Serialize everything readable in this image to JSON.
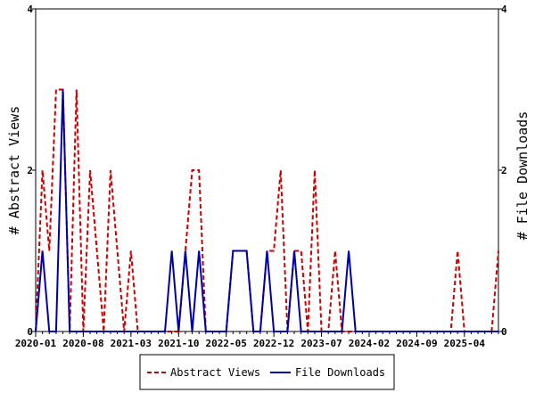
{
  "chart_data": {
    "type": "line",
    "xlabel": "",
    "ylabel_left": "# Abstract Views",
    "ylabel_right": "# File Downloads",
    "ylim": [
      0,
      4
    ],
    "y_ticks": [
      "0",
      "2",
      "4"
    ],
    "x_tick_labels": [
      "2020-01",
      "2020-08",
      "2021-03",
      "2021-10",
      "2022-05",
      "2022-12",
      "2023-07",
      "2024-02",
      "2024-09",
      "2025-04"
    ],
    "x_domain_months": [
      0,
      68
    ],
    "series": [
      {
        "name": "Abstract Views",
        "color": "#cc0000",
        "style": "dashed",
        "axis": "left",
        "points": [
          [
            0,
            0
          ],
          [
            1,
            2
          ],
          [
            2,
            1
          ],
          [
            3,
            3
          ],
          [
            4,
            3
          ],
          [
            5,
            0
          ],
          [
            6,
            3
          ],
          [
            7,
            0
          ],
          [
            8,
            2
          ],
          [
            9,
            1
          ],
          [
            10,
            0
          ],
          [
            11,
            2
          ],
          [
            12,
            1
          ],
          [
            13,
            0
          ],
          [
            14,
            1
          ],
          [
            15,
            0
          ],
          [
            16,
            0
          ],
          [
            17,
            0
          ],
          [
            18,
            0
          ],
          [
            19,
            0
          ],
          [
            20,
            0
          ],
          [
            21,
            0
          ],
          [
            22,
            1
          ],
          [
            23,
            2
          ],
          [
            24,
            2
          ],
          [
            25,
            0
          ],
          [
            26,
            0
          ],
          [
            27,
            0
          ],
          [
            28,
            0
          ],
          [
            29,
            1
          ],
          [
            30,
            1
          ],
          [
            31,
            1
          ],
          [
            32,
            0
          ],
          [
            33,
            0
          ],
          [
            34,
            1
          ],
          [
            35,
            1
          ],
          [
            36,
            2
          ],
          [
            37,
            0
          ],
          [
            38,
            1
          ],
          [
            39,
            1
          ],
          [
            40,
            0
          ],
          [
            41,
            2
          ],
          [
            42,
            0
          ],
          [
            43,
            0
          ],
          [
            44,
            1
          ],
          [
            45,
            0
          ],
          [
            46,
            0
          ],
          [
            47,
            0
          ],
          [
            48,
            0
          ],
          [
            49,
            0
          ],
          [
            50,
            0
          ],
          [
            51,
            0
          ],
          [
            52,
            0
          ],
          [
            53,
            0
          ],
          [
            54,
            0
          ],
          [
            55,
            0
          ],
          [
            56,
            0
          ],
          [
            57,
            0
          ],
          [
            58,
            0
          ],
          [
            59,
            0
          ],
          [
            60,
            0
          ],
          [
            61,
            0
          ],
          [
            62,
            1
          ],
          [
            63,
            0
          ],
          [
            64,
            0
          ],
          [
            65,
            0
          ],
          [
            66,
            0
          ],
          [
            67,
            0
          ],
          [
            68,
            1
          ]
        ]
      },
      {
        "name": "File Downloads",
        "color": "#0000aa",
        "style": "solid",
        "axis": "right",
        "points": [
          [
            0,
            0
          ],
          [
            1,
            1
          ],
          [
            2,
            0
          ],
          [
            3,
            0
          ],
          [
            4,
            3
          ],
          [
            5,
            0
          ],
          [
            6,
            0
          ],
          [
            7,
            0
          ],
          [
            8,
            0
          ],
          [
            9,
            0
          ],
          [
            10,
            0
          ],
          [
            11,
            0
          ],
          [
            12,
            0
          ],
          [
            13,
            0
          ],
          [
            14,
            0
          ],
          [
            15,
            0
          ],
          [
            16,
            0
          ],
          [
            17,
            0
          ],
          [
            18,
            0
          ],
          [
            19,
            0
          ],
          [
            20,
            1
          ],
          [
            21,
            0
          ],
          [
            22,
            1
          ],
          [
            23,
            0
          ],
          [
            24,
            1
          ],
          [
            25,
            0
          ],
          [
            26,
            0
          ],
          [
            27,
            0
          ],
          [
            28,
            0
          ],
          [
            29,
            1
          ],
          [
            30,
            1
          ],
          [
            31,
            1
          ],
          [
            32,
            0
          ],
          [
            33,
            0
          ],
          [
            34,
            1
          ],
          [
            35,
            0
          ],
          [
            36,
            0
          ],
          [
            37,
            0
          ],
          [
            38,
            1
          ],
          [
            39,
            0
          ],
          [
            40,
            0
          ],
          [
            41,
            0
          ],
          [
            42,
            0
          ],
          [
            43,
            0
          ],
          [
            44,
            0
          ],
          [
            45,
            0
          ],
          [
            46,
            1
          ],
          [
            47,
            0
          ],
          [
            48,
            0
          ],
          [
            49,
            0
          ],
          [
            50,
            0
          ],
          [
            51,
            0
          ],
          [
            52,
            0
          ],
          [
            53,
            0
          ],
          [
            54,
            0
          ],
          [
            55,
            0
          ],
          [
            56,
            0
          ],
          [
            57,
            0
          ],
          [
            58,
            0
          ],
          [
            59,
            0
          ],
          [
            60,
            0
          ],
          [
            61,
            0
          ],
          [
            62,
            0
          ],
          [
            63,
            0
          ],
          [
            64,
            0
          ],
          [
            65,
            0
          ],
          [
            66,
            0
          ],
          [
            67,
            0
          ],
          [
            68,
            0
          ]
        ]
      }
    ],
    "grid": false,
    "legend_position": "bottom-center"
  }
}
